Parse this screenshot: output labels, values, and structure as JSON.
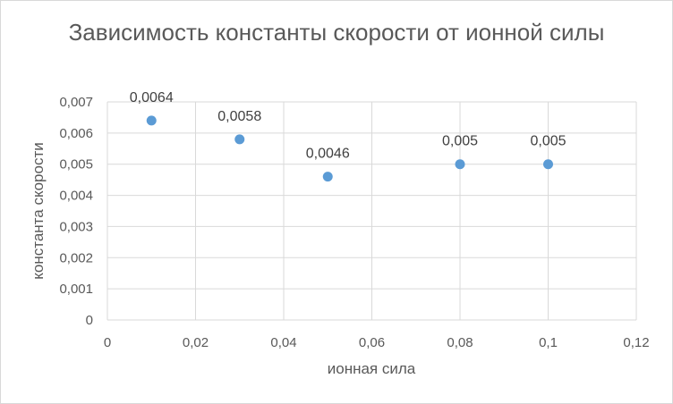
{
  "chart_data": {
    "type": "scatter",
    "title": "Зависимость константы скорости от ионной силы",
    "xlabel": "ионная сила",
    "ylabel": "константа скорости",
    "xlim": [
      0,
      0.12
    ],
    "ylim": [
      0,
      0.007
    ],
    "x_ticks": [
      "0",
      "0,02",
      "0,04",
      "0,06",
      "0,08",
      "0,1",
      "0,12"
    ],
    "y_ticks": [
      "0",
      "0,001",
      "0,002",
      "0,003",
      "0,004",
      "0,005",
      "0,006",
      "0,007"
    ],
    "grid": true,
    "legend": "none",
    "series": [
      {
        "x": [
          0.01,
          0.03,
          0.05,
          0.08,
          0.1
        ],
        "y": [
          0.0064,
          0.0058,
          0.0046,
          0.005,
          0.005
        ],
        "data_labels": [
          "0,0064",
          "0,0058",
          "0,0046",
          "0,005",
          "0,005"
        ],
        "color": "#5b9bd5"
      }
    ],
    "colors": {
      "grid": "#d9d9d9",
      "text": "#595959",
      "marker": "#5b9bd5"
    }
  }
}
